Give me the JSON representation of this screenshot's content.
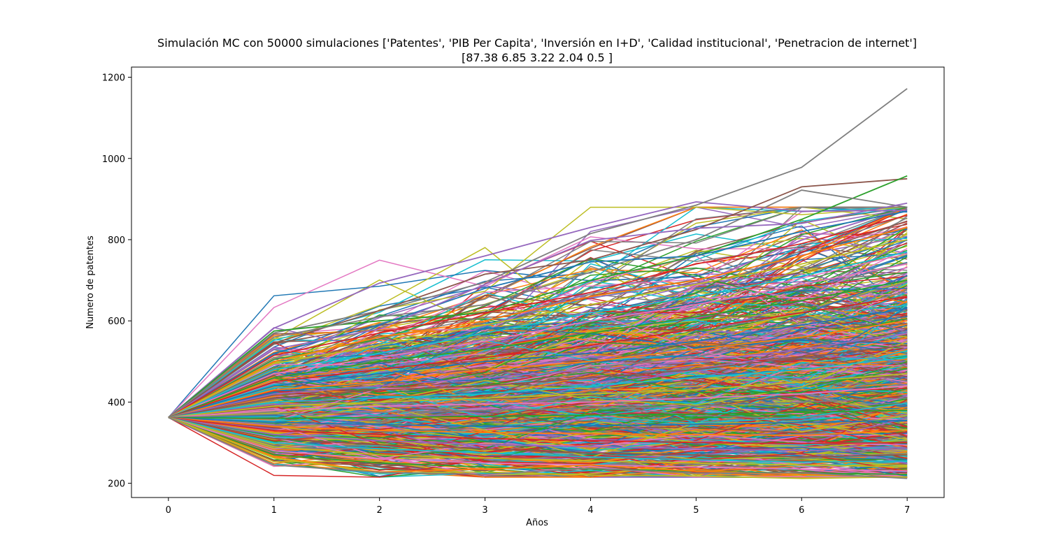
{
  "chart_data": {
    "type": "line",
    "title": "Simulación MC con 50000 simulaciones ['Patentes', 'PIB Per Capita', 'Inversión en I+D', 'Calidad institucional', 'Penetracion de internet']",
    "subtitle": "[87.38  6.85  3.22  2.04  0.5 ]",
    "xlabel": "Años",
    "ylabel": "Numero de patentes",
    "x": [
      0,
      1,
      2,
      3,
      4,
      5,
      6,
      7
    ],
    "xticks": [
      "0",
      "1",
      "2",
      "3",
      "4",
      "5",
      "6",
      "7"
    ],
    "yticks": [
      "200",
      "400",
      "600",
      "800",
      "1000",
      "1200"
    ],
    "xlim": [
      -0.35,
      7.35
    ],
    "ylim": [
      165,
      1225
    ],
    "grid": false,
    "start_value": 362,
    "series": [
      {
        "values": [
          362,
          582,
          693,
          760,
          830,
          893,
          870,
          872
        ],
        "color": "#9467bd"
      },
      {
        "values": [
          362,
          570,
          625,
          695,
          815,
          885,
          978,
          1172
        ],
        "color": "#7f7f7f"
      },
      {
        "values": [
          362,
          545,
          625,
          715,
          750,
          825,
          930,
          950
        ],
        "color": "#8c564b"
      },
      {
        "values": [
          362,
          575,
          600,
          620,
          700,
          760,
          850,
          957
        ],
        "color": "#2ca02c"
      },
      {
        "values": [
          362,
          560,
          610,
          640,
          720,
          800,
          922,
          880
        ],
        "color": "#7f7f7f"
      },
      {
        "values": [
          362,
          520,
          590,
          680,
          745,
          760,
          820,
          870
        ],
        "color": "#1f77b4"
      },
      {
        "values": [
          362,
          530,
          580,
          690,
          798,
          828,
          840,
          890
        ],
        "color": "#9467bd"
      },
      {
        "values": [
          362,
          515,
          570,
          620,
          670,
          740,
          790,
          860
        ],
        "color": "#d62728"
      },
      {
        "values": [
          362,
          500,
          560,
          600,
          660,
          700,
          760,
          830
        ],
        "color": "#ff7f0e"
      },
      {
        "values": [
          362,
          495,
          540,
          590,
          640,
          690,
          740,
          800
        ],
        "color": "#bcbd22"
      },
      {
        "values": [
          362,
          480,
          520,
          570,
          620,
          660,
          710,
          770
        ],
        "color": "#17becf"
      },
      {
        "values": [
          362,
          470,
          510,
          550,
          600,
          640,
          690,
          740
        ],
        "color": "#e377c2"
      },
      {
        "values": [
          362,
          460,
          500,
          530,
          570,
          610,
          650,
          700
        ],
        "color": "#2ca02c"
      },
      {
        "values": [
          362,
          450,
          480,
          510,
          540,
          580,
          620,
          660
        ],
        "color": "#d62728"
      },
      {
        "values": [
          362,
          440,
          470,
          500,
          520,
          550,
          590,
          630
        ],
        "color": "#1f77b4"
      },
      {
        "values": [
          362,
          430,
          450,
          480,
          500,
          530,
          560,
          600
        ],
        "color": "#ff7f0e"
      },
      {
        "values": [
          362,
          420,
          440,
          460,
          480,
          500,
          530,
          570
        ],
        "color": "#9467bd"
      },
      {
        "values": [
          362,
          410,
          430,
          440,
          460,
          480,
          510,
          540
        ],
        "color": "#8c564b"
      },
      {
        "values": [
          362,
          400,
          410,
          420,
          440,
          460,
          480,
          510
        ],
        "color": "#17becf"
      },
      {
        "values": [
          362,
          390,
          400,
          410,
          420,
          430,
          450,
          470
        ],
        "color": "#bcbd22"
      },
      {
        "values": [
          362,
          380,
          390,
          395,
          400,
          410,
          420,
          440
        ],
        "color": "#e377c2"
      },
      {
        "values": [
          362,
          370,
          375,
          380,
          385,
          390,
          400,
          410
        ],
        "color": "#7f7f7f"
      },
      {
        "values": [
          362,
          360,
          362,
          365,
          368,
          370,
          375,
          380
        ],
        "color": "#2ca02c"
      },
      {
        "values": [
          362,
          350,
          345,
          340,
          342,
          345,
          350,
          355
        ],
        "color": "#1f77b4"
      },
      {
        "values": [
          362,
          340,
          330,
          325,
          322,
          320,
          318,
          330
        ],
        "color": "#ff7f0e"
      },
      {
        "values": [
          362,
          330,
          320,
          310,
          305,
          300,
          298,
          300
        ],
        "color": "#d62728"
      },
      {
        "values": [
          362,
          320,
          305,
          295,
          290,
          285,
          280,
          285
        ],
        "color": "#9467bd"
      },
      {
        "values": [
          362,
          310,
          295,
          285,
          275,
          270,
          265,
          270
        ],
        "color": "#8c564b"
      },
      {
        "values": [
          362,
          300,
          285,
          275,
          265,
          258,
          252,
          255
        ],
        "color": "#17becf"
      },
      {
        "values": [
          362,
          290,
          270,
          262,
          255,
          250,
          245,
          240
        ],
        "color": "#bcbd22"
      },
      {
        "values": [
          362,
          280,
          260,
          250,
          245,
          240,
          235,
          230
        ],
        "color": "#e377c2"
      },
      {
        "values": [
          362,
          270,
          250,
          240,
          235,
          230,
          225,
          222
        ],
        "color": "#2ca02c"
      },
      {
        "values": [
          362,
          265,
          228,
          235,
          245,
          230,
          222,
          215
        ],
        "color": "#ff7f0e"
      },
      {
        "values": [
          362,
          262,
          226,
          228,
          220,
          218,
          212,
          216
        ],
        "color": "#bcbd22"
      },
      {
        "values": [
          362,
          245,
          227,
          222,
          237,
          225,
          226,
          212
        ],
        "color": "#7f7f7f"
      }
    ]
  }
}
